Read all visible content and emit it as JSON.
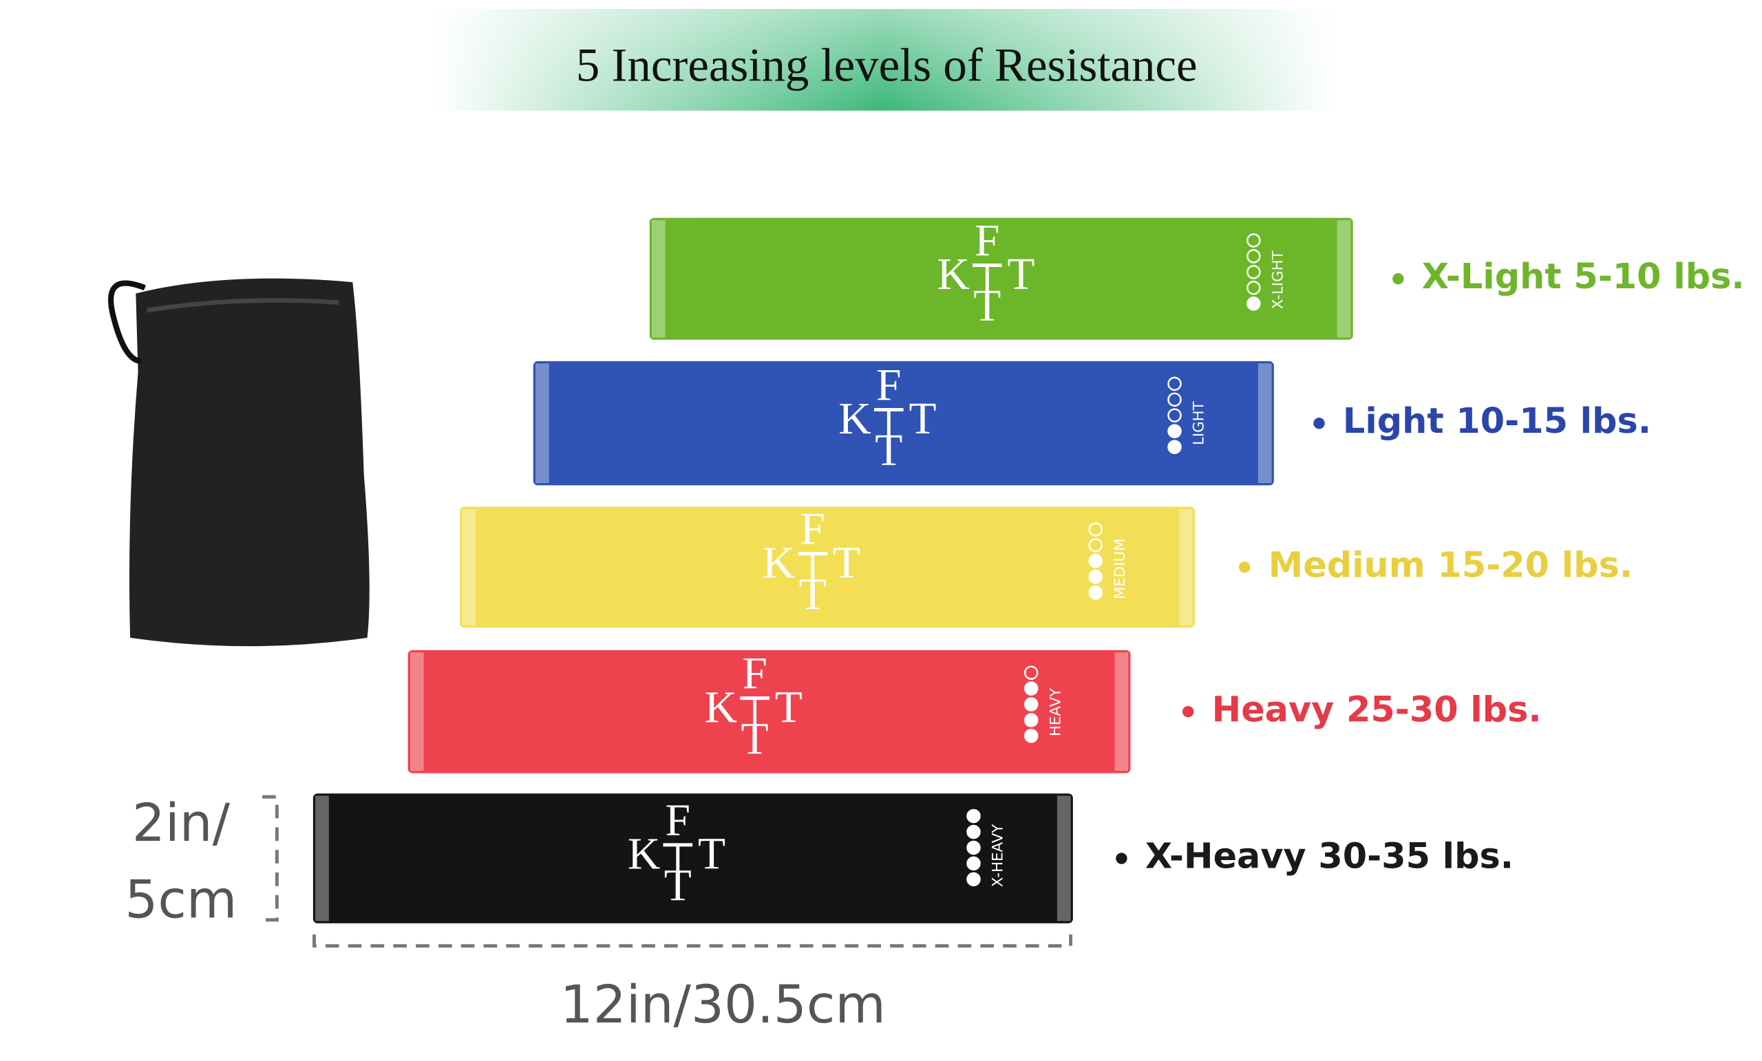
{
  "title": "5 Increasing levels of Resistance",
  "logo": {
    "top": "F",
    "left": "K",
    "right": "T",
    "bottom": "T"
  },
  "bands": [
    {
      "band_text": "X-LIGHT",
      "level": 1,
      "label": "X-Light 5-10 lbs.",
      "color": "#6cb62a",
      "label_color": "#6fb52c"
    },
    {
      "band_text": "LIGHT",
      "level": 2,
      "label": "Light 10-15 lbs.",
      "color": "#3053b6",
      "label_color": "#2b46a8"
    },
    {
      "band_text": "MEDIUM",
      "level": 3,
      "label": "Medium 15-20 lbs.",
      "color": "#f2df55",
      "label_color": "#e9cf40"
    },
    {
      "band_text": "HEAVY",
      "level": 4,
      "label": "Heavy 25-30 lbs.",
      "color": "#ef424f",
      "label_color": "#e53a48"
    },
    {
      "band_text": "X-HEAVY",
      "level": 5,
      "label": "X-Heavy  30-35 lbs.",
      "color": "#141414",
      "label_color": "#1a1a1a"
    }
  ],
  "dimensions": {
    "height_line1": "2in/",
    "height_line2": "5cm",
    "width": "12in/30.5cm"
  }
}
